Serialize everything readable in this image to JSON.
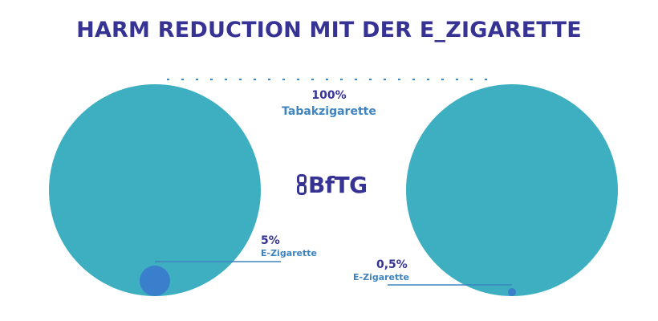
{
  "title": "HARM REDUCTION MIT DER E_ZIGARETTE",
  "reference": {
    "value": "100%",
    "label": "Tabakzigarette"
  },
  "left": {
    "value": "5%",
    "label": "E-Zigarette",
    "fraction": 0.05
  },
  "right": {
    "value": "0,5%",
    "label": "E-Zigarette",
    "fraction": 0.005
  },
  "logo": {
    "text": "BfTG",
    "icon": "bftg-monogram-icon"
  },
  "colors": {
    "title": "#363394",
    "circle": "#3dafc1",
    "inner": "#3a7fcc",
    "line": "#3f83bf",
    "label": "#363394",
    "sublabel": "#3f83bf"
  }
}
